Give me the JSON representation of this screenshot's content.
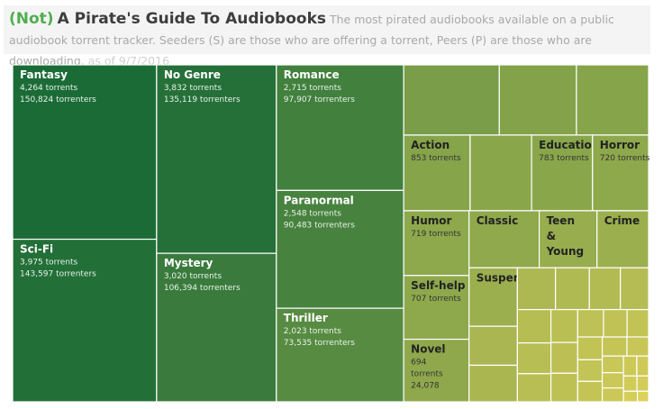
{
  "header": {
    "lead": "(Not)",
    "title": "A Pirate's Guide To Audiobooks",
    "description": "The most pirated  audiobooks available on a public audiobook torrent tracker. Seeders (S) are those who are offering a torrent, Peers (P) are those who are downloading.",
    "date": "as of 9/7/2016"
  },
  "chart_data": {
    "type": "treemap",
    "title": "A Pirate's Guide To Audiobooks",
    "size_measure": "torrents",
    "color_scale": {
      "high": "#1b6b37",
      "low": "#dcd15a"
    },
    "labels": {
      "Fantasy": [
        "4,264 torrents",
        "150,824 torrenters"
      ],
      "Mystery": [
        "3,020 torrents",
        "106,394 torrenters"
      ],
      "Thriller": [
        "2,023 torrents",
        "73,535 torrenters"
      ],
      "Sci-Fi": [
        "3,975 torrents",
        "143,597 torrenters"
      ],
      "Romance": [
        "2,715 torrents",
        "97,907 torrenters"
      ],
      "No Genre": [
        "3,832 torrents",
        "135,119 torrenters"
      ],
      "Paranormal": [
        "2,548 torrents",
        "90,483 torrenters"
      ],
      "Action": [
        "853 torrents"
      ],
      "Education": [
        "783 torrents"
      ],
      "Humor": [
        "719 torrents"
      ],
      "Self-help": [
        "707 torrents"
      ],
      "Horror": [
        "720 torrents"
      ],
      "Novel": [
        "694",
        "torrents",
        "24,078"
      ],
      "Classic": [],
      "Teen\n&\nYoung": [],
      "Crime": [],
      "Suspense": []
    },
    "categories": [
      {
        "name": "Fantasy",
        "torrents": 4264,
        "torrenters": 150824
      },
      {
        "name": "Sci-Fi",
        "torrents": 3975,
        "torrenters": 143597
      },
      {
        "name": "No Genre",
        "torrents": 3832,
        "torrenters": 135119
      },
      {
        "name": "Mystery",
        "torrents": 3020,
        "torrenters": 106394
      },
      {
        "name": "Romance",
        "torrents": 2715,
        "torrenters": 97907
      },
      {
        "name": "Paranormal",
        "torrents": 2548,
        "torrenters": 90483
      },
      {
        "name": "Thriller",
        "torrents": 2023,
        "torrenters": 73535
      },
      {
        "name": "",
        "torrents": 1140
      },
      {
        "name": "",
        "torrents": 920
      },
      {
        "name": "",
        "torrents": 860
      },
      {
        "name": "Action",
        "torrents": 853
      },
      {
        "name": "",
        "torrents": 790
      },
      {
        "name": "Education",
        "torrents": 783
      },
      {
        "name": "Horror",
        "torrents": 720
      },
      {
        "name": "Humor",
        "torrents": 719
      },
      {
        "name": "Self-help",
        "torrents": 707
      },
      {
        "name": "Novel",
        "torrents": 694,
        "torrenters": 24078
      },
      {
        "name": "Classic",
        "torrents": 680
      },
      {
        "name": "Teen\n&\nYoung",
        "torrents": 560
      },
      {
        "name": "Crime",
        "torrents": 500
      },
      {
        "name": "Suspense",
        "torrents": 480
      },
      {
        "name": "",
        "torrents": 320
      },
      {
        "name": "",
        "torrents": 300
      },
      {
        "name": "",
        "torrents": 270
      },
      {
        "name": "",
        "torrents": 240
      },
      {
        "name": "",
        "torrents": 220
      },
      {
        "name": "",
        "torrents": 200
      },
      {
        "name": "",
        "torrents": 190
      },
      {
        "name": "",
        "torrents": 175
      },
      {
        "name": "",
        "torrents": 160
      },
      {
        "name": "",
        "torrents": 150
      },
      {
        "name": "",
        "torrents": 140
      },
      {
        "name": "",
        "torrents": 130
      },
      {
        "name": "",
        "torrents": 120
      },
      {
        "name": "",
        "torrents": 110
      },
      {
        "name": "",
        "torrents": 100
      },
      {
        "name": "",
        "torrents": 95
      },
      {
        "name": "",
        "torrents": 90
      },
      {
        "name": "",
        "torrents": 85
      },
      {
        "name": "",
        "torrents": 80
      },
      {
        "name": "",
        "torrents": 70
      },
      {
        "name": "",
        "torrents": 60
      },
      {
        "name": "",
        "torrents": 55
      },
      {
        "name": "",
        "torrents": 50
      },
      {
        "name": "",
        "torrents": 45
      },
      {
        "name": "",
        "torrents": 40
      },
      {
        "name": "",
        "torrents": 35
      },
      {
        "name": "",
        "torrents": 30
      },
      {
        "name": "",
        "torrents": 25
      },
      {
        "name": "",
        "torrents": 20
      }
    ]
  }
}
